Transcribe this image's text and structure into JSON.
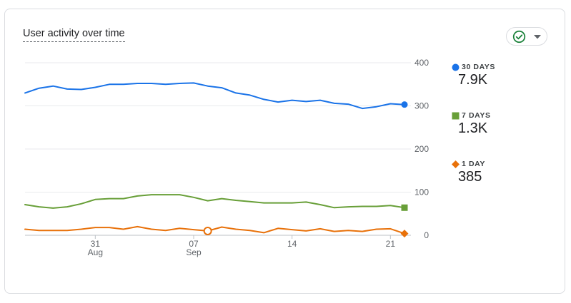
{
  "card": {
    "title": "User activity over time"
  },
  "compare_button": {
    "icon": "check-circle-icon",
    "caret_icon": "caret-down-icon",
    "color": "#188038"
  },
  "legend": [
    {
      "label": "30 DAYS",
      "value": "7.9K",
      "color": "#1a73e8",
      "marker": "circle"
    },
    {
      "label": "7 DAYS",
      "value": "1.3K",
      "color": "#689f38",
      "marker": "square"
    },
    {
      "label": "1 DAY",
      "value": "385",
      "color": "#e8710a",
      "marker": "diamond"
    }
  ],
  "chart_data": {
    "type": "line",
    "y_axis": {
      "min": 0,
      "max": 400,
      "ticks": [
        "0",
        "100",
        "200",
        "300",
        "400"
      ],
      "position": "right"
    },
    "x_ticks": [
      {
        "index": 5,
        "label": "31",
        "sublabel": "Aug"
      },
      {
        "index": 12,
        "label": "07",
        "sublabel": "Sep"
      },
      {
        "index": 19,
        "label": "14",
        "sublabel": ""
      },
      {
        "index": 26,
        "label": "21",
        "sublabel": ""
      }
    ],
    "grid": true,
    "series": [
      {
        "name": "30 DAYS",
        "color": "#1a73e8",
        "marker": "circle",
        "values": [
          330,
          341,
          346,
          339,
          338,
          343,
          350,
          350,
          352,
          352,
          350,
          352,
          353,
          346,
          342,
          330,
          325,
          315,
          309,
          313,
          310,
          313,
          306,
          304,
          294,
          298,
          305,
          303
        ]
      },
      {
        "name": "7 DAYS",
        "color": "#689f38",
        "marker": "square",
        "values": [
          71,
          66,
          63,
          66,
          73,
          83,
          85,
          85,
          91,
          94,
          94,
          94,
          88,
          80,
          85,
          81,
          78,
          75,
          75,
          75,
          77,
          71,
          64,
          66,
          67,
          67,
          69,
          64
        ]
      },
      {
        "name": "1 DAY",
        "color": "#e8710a",
        "marker": "diamond",
        "values": [
          14,
          11,
          11,
          11,
          14,
          18,
          18,
          14,
          20,
          14,
          11,
          16,
          13,
          10,
          19,
          14,
          11,
          6,
          16,
          13,
          10,
          15,
          9,
          11,
          9,
          14,
          15,
          4
        ],
        "highlight_index": 13
      }
    ]
  }
}
